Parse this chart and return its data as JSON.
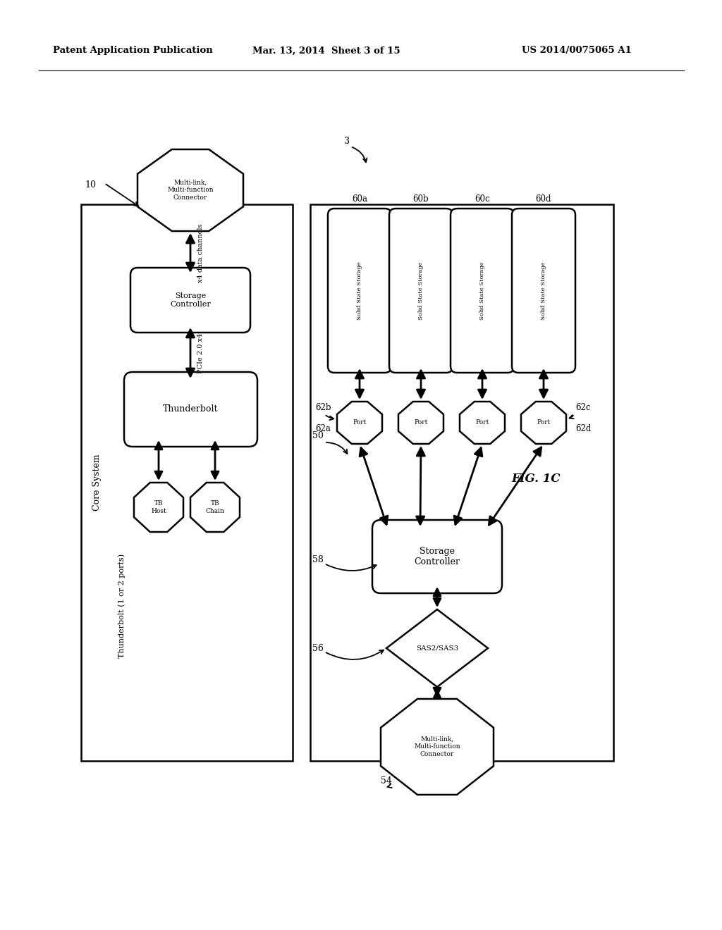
{
  "bg_color": "#ffffff",
  "header_left": "Patent Application Publication",
  "header_mid": "Mar. 13, 2014  Sheet 3 of 15",
  "header_right": "US 2014/0075065 A1",
  "fig_label": "FIG. 1C",
  "label_3": "3",
  "label_10": "10",
  "label_50": "50",
  "label_54": "54",
  "label_56": "56",
  "label_58": "58",
  "label_60a": "60a",
  "label_60b": "60b",
  "label_60c": "60c",
  "label_60d": "60d",
  "label_62a": "62a",
  "label_62b": "62b",
  "label_62c": "62c",
  "label_62d": "62d",
  "core_system_label": "Core System",
  "thunderbolt_ports_label": "Thunderbolt (1 or 2 ports)",
  "connector_top_text": "Multi-link,\nMulti-function\nConnector",
  "x4_data_label": "x4 data channels",
  "storage_controller_left_text": "Storage\nController",
  "pcie_label": "PCIe 2.0 x4",
  "thunderbolt_text": "Thunderbolt",
  "tb_host_text": "TB\nHost",
  "tb_chain_text": "TB\nChain",
  "connector_bottom_text": "Multi-link,\nMulti-function\nConnector",
  "sas_label": "SAS2/SAS3",
  "storage_controller_right_text": "Storage\nController",
  "port_text": "Port",
  "ssd_text": "Solid State Storage"
}
